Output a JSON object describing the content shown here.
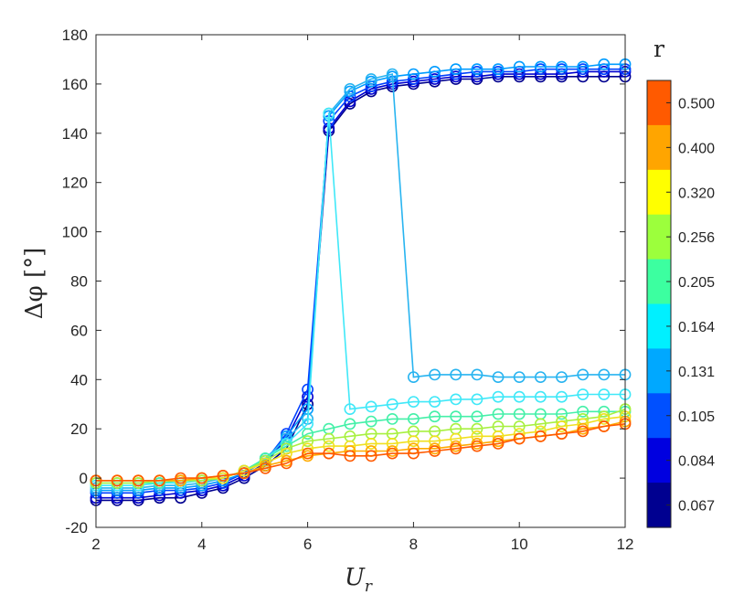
{
  "chart_data": {
    "type": "line",
    "xlabel": "U_r",
    "ylabel": "Δφ [°]",
    "xlim": [
      2,
      12
    ],
    "ylim": [
      -20,
      180
    ],
    "x_ticks": [
      2,
      4,
      6,
      8,
      10,
      12
    ],
    "y_ticks": [
      -20,
      0,
      20,
      40,
      60,
      80,
      100,
      120,
      140,
      160,
      180
    ],
    "grid": false,
    "marker": "circle",
    "x": [
      2.0,
      2.4,
      2.8,
      3.2,
      3.6,
      4.0,
      4.4,
      4.8,
      5.2,
      5.6,
      6.0,
      6.4,
      6.8,
      7.2,
      7.6,
      8.0,
      8.4,
      8.8,
      9.2,
      9.6,
      10.0,
      10.4,
      10.8,
      11.2,
      11.6,
      12.0
    ],
    "colorbar": {
      "title": "r",
      "labels": [
        "0.500",
        "0.400",
        "0.320",
        "0.256",
        "0.205",
        "0.164",
        "0.131",
        "0.105",
        "0.084",
        "0.067"
      ],
      "colors": [
        "#ff5a00",
        "#ffa500",
        "#ffff00",
        "#9cff3c",
        "#3cffa0",
        "#00f0ff",
        "#00a8ff",
        "#0050ff",
        "#0000e0",
        "#000090"
      ],
      "position": "right"
    },
    "series": [
      {
        "color": "#00008f",
        "values": [
          -9,
          -9,
          -9,
          -8,
          -8,
          -6,
          -4,
          0,
          5,
          12,
          30,
          141,
          152,
          157,
          159,
          160,
          161,
          162,
          162,
          163,
          163,
          163,
          163,
          163,
          163,
          163
        ]
      },
      {
        "color": "#0000d0",
        "values": [
          -8,
          -8,
          -8,
          -7,
          -6,
          -5,
          -3,
          1,
          6,
          16,
          33,
          142,
          153,
          158,
          160,
          161,
          162,
          163,
          163,
          164,
          164,
          164,
          164,
          165,
          165,
          165
        ]
      },
      {
        "color": "#0040ff",
        "values": [
          -6,
          -6,
          -6,
          -5,
          -5,
          -4,
          -2,
          2,
          7,
          18,
          36,
          145,
          155,
          159,
          161,
          162,
          163,
          164,
          165,
          165,
          165,
          166,
          166,
          166,
          166,
          166
        ]
      },
      {
        "color": "#009cff",
        "values": [
          -5,
          -5,
          -5,
          -4,
          -4,
          -3,
          -1,
          2,
          7,
          17,
          28,
          147,
          157,
          161,
          163,
          164,
          165,
          166,
          166,
          166,
          167,
          167,
          167,
          167,
          168,
          168
        ]
      },
      {
        "color": "#28b4f0",
        "values": [
          -4,
          -4,
          -4,
          -3,
          -3,
          -2,
          0,
          3,
          8,
          16,
          24,
          148,
          158,
          162,
          164,
          41,
          42,
          42,
          42,
          41,
          41,
          41,
          41,
          42,
          42,
          42
        ]
      },
      {
        "color": "#40e8f8",
        "values": [
          -3,
          -3,
          -3,
          -2,
          -2,
          -1,
          0,
          3,
          8,
          14,
          22,
          148,
          28,
          29,
          30,
          31,
          31,
          32,
          32,
          33,
          33,
          33,
          33,
          34,
          34,
          34
        ]
      },
      {
        "color": "#44f0a8",
        "values": [
          -2,
          -2,
          -2,
          -2,
          -1,
          -1,
          0,
          3,
          8,
          13,
          18,
          20,
          22,
          23,
          24,
          24,
          25,
          25,
          25,
          26,
          26,
          26,
          26,
          27,
          27,
          27
        ]
      },
      {
        "color": "#a8f040",
        "values": [
          -2,
          -2,
          -2,
          -1,
          -1,
          -1,
          0,
          3,
          7,
          12,
          15,
          16,
          17,
          18,
          18,
          19,
          19,
          20,
          20,
          21,
          21,
          22,
          23,
          24,
          25,
          28
        ]
      },
      {
        "color": "#f0e020",
        "values": [
          -1,
          -1,
          -1,
          -1,
          -1,
          0,
          0,
          3,
          6,
          10,
          12,
          13,
          13,
          14,
          14,
          15,
          15,
          16,
          17,
          17,
          18,
          19,
          21,
          22,
          24,
          25
        ]
      },
      {
        "color": "#ffaa00",
        "values": [
          -1,
          -1,
          -1,
          -1,
          -1,
          0,
          1,
          2,
          5,
          7,
          9,
          10,
          11,
          11,
          11,
          12,
          12,
          13,
          14,
          15,
          16,
          17,
          18,
          20,
          21,
          23
        ]
      },
      {
        "color": "#ff5a00",
        "values": [
          -1,
          -1,
          -1,
          -1,
          0,
          0,
          1,
          2,
          4,
          6,
          10,
          10,
          9,
          9,
          10,
          10,
          11,
          12,
          13,
          14,
          16,
          17,
          18,
          19,
          21,
          22
        ]
      }
    ]
  }
}
